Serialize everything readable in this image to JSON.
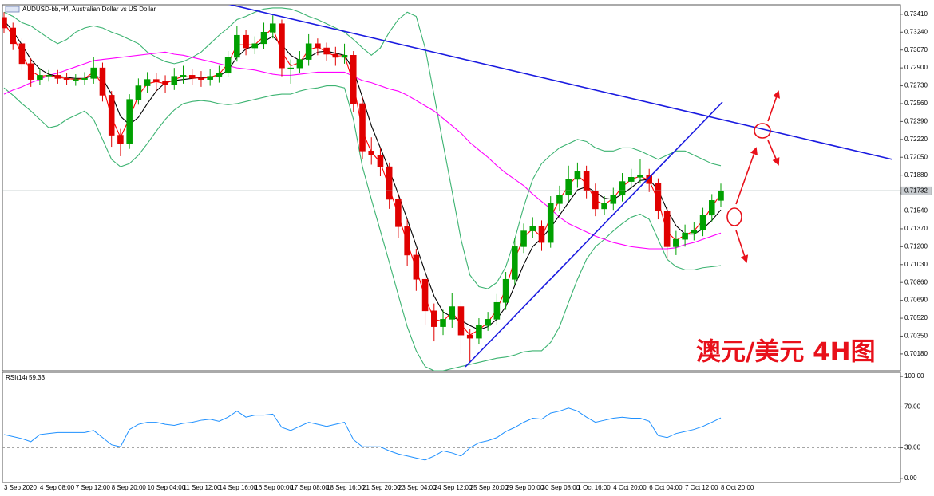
{
  "chart_data": [
    {
      "type": "candlestick",
      "title": "AUDUSD-bb,H4, Australian Dollar vs US Dollar",
      "annotation": "澳元/美元 4H图",
      "up_color": "#00a000",
      "down_color": "#e00000",
      "categories": [
        "3 Sep 2020",
        null,
        null,
        null,
        "4 Sep 08:00",
        null,
        null,
        null,
        "7 Sep 12:00",
        null,
        null,
        null,
        "8 Sep 20:00",
        null,
        null,
        null,
        "10 Sep 04:00",
        null,
        null,
        null,
        "11 Sep 12:00",
        null,
        null,
        null,
        "14 Sep 16:00",
        null,
        null,
        null,
        "16 Sep 00:00",
        null,
        null,
        null,
        "17 Sep 08:00",
        null,
        null,
        null,
        "18 Sep 16:00",
        null,
        null,
        null,
        "21 Sep 20:00",
        null,
        null,
        null,
        "23 Sep 04:00",
        null,
        null,
        null,
        "24 Sep 12:00",
        null,
        null,
        null,
        "25 Sep 20:00",
        null,
        null,
        null,
        "29 Sep 00:00",
        null,
        null,
        null,
        "30 Sep 08:00",
        null,
        null,
        null,
        "1 Oct 16:00",
        null,
        null,
        null,
        "4 Oct 20:00",
        null,
        null,
        null,
        "6 Oct 04:00",
        null,
        null,
        null,
        "7 Oct 12:00",
        null,
        null,
        null,
        "8 Oct 20:00"
      ],
      "open": [
        0.7338,
        0.7328,
        0.7313,
        0.7294,
        0.7279,
        0.7283,
        0.7283,
        0.728,
        0.7279,
        0.7279,
        0.728,
        0.729,
        0.7264,
        0.7226,
        0.7218,
        0.726,
        0.7273,
        0.7279,
        0.7277,
        0.7274,
        0.7282,
        0.7283,
        0.728,
        0.7279,
        0.7282,
        0.7285,
        0.73,
        0.7321,
        0.7309,
        0.7313,
        0.7324,
        0.7332,
        0.729,
        0.729,
        0.7298,
        0.7313,
        0.7309,
        0.7303,
        0.73,
        0.7302,
        0.7256,
        0.7211,
        0.7207,
        0.7196,
        0.7165,
        0.7139,
        0.7112,
        0.7089,
        0.7059,
        0.7044,
        0.7051,
        0.7063,
        0.7036,
        0.7033,
        0.7045,
        0.7051,
        0.7067,
        0.7089,
        0.712,
        0.7135,
        0.7139,
        0.7124,
        0.7161,
        0.7169,
        0.7184,
        0.7192,
        0.7173,
        0.7156,
        0.7161,
        0.7169,
        0.7182,
        0.7186,
        0.7188,
        0.718,
        0.7154,
        0.712,
        0.7127,
        0.7133,
        0.7136,
        0.715,
        0.7164
      ],
      "high": [
        0.7343,
        0.7333,
        0.7318,
        0.7299,
        0.729,
        0.7288,
        0.7288,
        0.7285,
        0.7284,
        0.7286,
        0.73,
        0.7295,
        0.7268,
        0.7232,
        0.7265,
        0.728,
        0.7286,
        0.7285,
        0.7283,
        0.729,
        0.7292,
        0.7289,
        0.7287,
        0.7289,
        0.7292,
        0.7306,
        0.733,
        0.7326,
        0.732,
        0.7333,
        0.734,
        0.7336,
        0.7298,
        0.7306,
        0.7322,
        0.7318,
        0.7314,
        0.731,
        0.7313,
        0.7306,
        0.7262,
        0.7224,
        0.7214,
        0.72,
        0.717,
        0.7146,
        0.7118,
        0.7094,
        0.7066,
        0.706,
        0.7076,
        0.7068,
        0.7042,
        0.7052,
        0.7058,
        0.7075,
        0.7096,
        0.7128,
        0.7142,
        0.7148,
        0.7145,
        0.7168,
        0.7178,
        0.7197,
        0.72,
        0.7197,
        0.718,
        0.7168,
        0.7176,
        0.719,
        0.7194,
        0.7203,
        0.7194,
        0.7185,
        0.7158,
        0.7135,
        0.7141,
        0.7143,
        0.7157,
        0.717,
        0.718
      ],
      "low": [
        0.7323,
        0.7307,
        0.7288,
        0.7272,
        0.7274,
        0.7277,
        0.7275,
        0.7274,
        0.7273,
        0.7274,
        0.7275,
        0.7258,
        0.7215,
        0.7206,
        0.7213,
        0.7255,
        0.7266,
        0.7268,
        0.7266,
        0.7269,
        0.7275,
        0.7274,
        0.7272,
        0.7273,
        0.7276,
        0.7281,
        0.7296,
        0.7302,
        0.7303,
        0.7308,
        0.7318,
        0.7282,
        0.7275,
        0.7285,
        0.7292,
        0.7302,
        0.7297,
        0.7292,
        0.7294,
        0.7248,
        0.7203,
        0.7198,
        0.7187,
        0.7156,
        0.7128,
        0.7102,
        0.7078,
        0.7046,
        0.703,
        0.7036,
        0.7043,
        0.7018,
        0.701,
        0.7027,
        0.704,
        0.7046,
        0.706,
        0.7084,
        0.7114,
        0.7128,
        0.7116,
        0.7119,
        0.7154,
        0.7163,
        0.7176,
        0.7166,
        0.7149,
        0.715,
        0.7155,
        0.7163,
        0.7176,
        0.718,
        0.7172,
        0.7146,
        0.7108,
        0.7112,
        0.712,
        0.7126,
        0.713,
        0.7144,
        0.7158
      ],
      "close": [
        0.7328,
        0.7313,
        0.7294,
        0.7279,
        0.7283,
        0.7283,
        0.728,
        0.7279,
        0.7279,
        0.728,
        0.729,
        0.7264,
        0.7226,
        0.7218,
        0.726,
        0.7273,
        0.7279,
        0.7277,
        0.7274,
        0.7282,
        0.7283,
        0.728,
        0.7279,
        0.7282,
        0.7285,
        0.73,
        0.7321,
        0.7309,
        0.7313,
        0.7324,
        0.7332,
        0.729,
        0.729,
        0.7298,
        0.7313,
        0.7309,
        0.7303,
        0.73,
        0.7302,
        0.7256,
        0.7211,
        0.7207,
        0.7196,
        0.7165,
        0.7139,
        0.7112,
        0.7089,
        0.7059,
        0.7044,
        0.7051,
        0.7063,
        0.7036,
        0.7033,
        0.7045,
        0.7051,
        0.7067,
        0.7089,
        0.712,
        0.7135,
        0.7139,
        0.7124,
        0.7161,
        0.7169,
        0.7184,
        0.7192,
        0.7173,
        0.7156,
        0.7161,
        0.7169,
        0.7182,
        0.7186,
        0.7188,
        0.718,
        0.7154,
        0.712,
        0.7127,
        0.7133,
        0.7136,
        0.715,
        0.7164,
        0.71732
      ],
      "series": [
        {
          "color": "#3cb371",
          "values": [
            0.7343,
            0.7339,
            0.7333,
            0.733,
            0.7324,
            0.7318,
            0.7313,
            0.7317,
            0.7324,
            0.7328,
            0.733,
            0.7328,
            0.7324,
            0.7321,
            0.7317,
            0.7313,
            0.7305,
            0.73,
            0.7296,
            0.7294,
            0.7296,
            0.73,
            0.7305,
            0.7313,
            0.7321,
            0.7328,
            0.7336,
            0.7339,
            0.7343,
            0.7346,
            0.7347,
            0.7347,
            0.7346,
            0.7343,
            0.7339,
            0.7336,
            0.7332,
            0.7328,
            0.7324,
            0.7317,
            0.7309,
            0.7302,
            0.7309,
            0.7324,
            0.7336,
            0.7343,
            0.7339,
            0.7309,
            0.7264,
            0.7218,
            0.7173,
            0.7127,
            0.7093,
            0.7082,
            0.708,
            0.7086,
            0.7101,
            0.7127,
            0.7158,
            0.7184,
            0.7199,
            0.7207,
            0.7214,
            0.7218,
            0.7222,
            0.722,
            0.7214,
            0.7211,
            0.7211,
            0.7214,
            0.7214,
            0.7211,
            0.7207,
            0.7203,
            0.7207,
            0.7211,
            0.7211,
            0.7207,
            0.7203,
            0.7199,
            0.7197
          ]
        },
        {
          "color": "#3cb371",
          "values": [
            0.7271,
            0.7264,
            0.7256,
            0.7249,
            0.7241,
            0.7233,
            0.7235,
            0.7241,
            0.7245,
            0.7249,
            0.7241,
            0.7222,
            0.7203,
            0.7196,
            0.7199,
            0.7207,
            0.7218,
            0.723,
            0.7241,
            0.725,
            0.7256,
            0.7258,
            0.7259,
            0.7258,
            0.7256,
            0.7255,
            0.7256,
            0.7258,
            0.726,
            0.7262,
            0.7264,
            0.7265,
            0.7265,
            0.7268,
            0.727,
            0.7271,
            0.7273,
            0.7273,
            0.7271,
            0.7241,
            0.7196,
            0.7165,
            0.7135,
            0.7105,
            0.7074,
            0.7044,
            0.7021,
            0.7006,
            0.7002,
            0.7002,
            0.7004,
            0.7006,
            0.7008,
            0.701,
            0.7012,
            0.7014,
            0.7015,
            0.7017,
            0.702,
            0.7021,
            0.7021,
            0.7029,
            0.7044,
            0.7067,
            0.7089,
            0.7108,
            0.712,
            0.7127,
            0.7135,
            0.7142,
            0.7148,
            0.7151,
            0.7146,
            0.7127,
            0.7108,
            0.7101,
            0.7098,
            0.7098,
            0.71,
            0.7101,
            0.7102
          ]
        },
        {
          "color": "#ff00ff",
          "values": [
            0.7265,
            0.7269,
            0.7272,
            0.7276,
            0.7279,
            0.7283,
            0.7285,
            0.7288,
            0.7291,
            0.7294,
            0.7297,
            0.7298,
            0.7299,
            0.73,
            0.7301,
            0.7302,
            0.7303,
            0.7304,
            0.7305,
            0.7303,
            0.7302,
            0.73,
            0.7298,
            0.7296,
            0.7294,
            0.7292,
            0.729,
            0.7289,
            0.7288,
            0.7286,
            0.7284,
            0.7283,
            0.7283,
            0.7284,
            0.7285,
            0.7286,
            0.7286,
            0.7286,
            0.7286,
            0.7282,
            0.7278,
            0.7276,
            0.7273,
            0.727,
            0.7268,
            0.7264,
            0.7259,
            0.7254,
            0.7249,
            0.7242,
            0.7235,
            0.7228,
            0.7219,
            0.7212,
            0.7205,
            0.7197,
            0.719,
            0.7184,
            0.7178,
            0.717,
            0.7163,
            0.7156,
            0.7148,
            0.7142,
            0.7138,
            0.7134,
            0.713,
            0.7127,
            0.7124,
            0.7122,
            0.712,
            0.7119,
            0.7118,
            0.7118,
            0.7118,
            0.7119,
            0.7122,
            0.7124,
            0.7127,
            0.713,
            0.7133
          ]
        },
        {
          "color": "#000000",
          "values": [
            0.7335,
            0.7325,
            0.7312,
            0.7298,
            0.7289,
            0.7284,
            0.7282,
            0.7281,
            0.728,
            0.728,
            0.7283,
            0.728,
            0.7265,
            0.7244,
            0.7236,
            0.7243,
            0.7256,
            0.7268,
            0.7276,
            0.7278,
            0.7279,
            0.728,
            0.7281,
            0.7281,
            0.7282,
            0.7288,
            0.73,
            0.7308,
            0.7311,
            0.7315,
            0.732,
            0.7312,
            0.7302,
            0.7297,
            0.73,
            0.7305,
            0.7306,
            0.7304,
            0.7302,
            0.7288,
            0.7262,
            0.7235,
            0.7214,
            0.7193,
            0.717,
            0.7146,
            0.7121,
            0.7096,
            0.7073,
            0.7058,
            0.7053,
            0.705,
            0.7045,
            0.7041,
            0.7044,
            0.7051,
            0.7063,
            0.7083,
            0.7103,
            0.712,
            0.7128,
            0.7138,
            0.715,
            0.7162,
            0.7174,
            0.7177,
            0.7172,
            0.7166,
            0.7165,
            0.717,
            0.7176,
            0.7183,
            0.7184,
            0.7174,
            0.7155,
            0.714,
            0.7132,
            0.7132,
            0.7137,
            0.7145,
            0.7155
          ]
        },
        {
          "color": "#ff0000",
          "values": [
            0.7333,
            0.732,
            0.7303,
            0.7287,
            0.7282,
            0.7283,
            0.7281,
            0.728,
            0.7279,
            0.728,
            0.7286,
            0.7274,
            0.7243,
            0.7224,
            0.7242,
            0.7264,
            0.7275,
            0.7277,
            0.7275,
            0.7279,
            0.7282,
            0.7281,
            0.728,
            0.7281,
            0.7284,
            0.7294,
            0.7312,
            0.7312,
            0.7312,
            0.732,
            0.7328,
            0.7305,
            0.7292,
            0.7295,
            0.7307,
            0.731,
            0.7305,
            0.7301,
            0.7302,
            0.7275,
            0.723,
            0.721,
            0.72,
            0.7176,
            0.715,
            0.7124,
            0.7099,
            0.7072,
            0.7051,
            0.7049,
            0.7058,
            0.7046,
            0.7036,
            0.7041,
            0.7048,
            0.706,
            0.708,
            0.7108,
            0.7129,
            0.7137,
            0.7129,
            0.7148,
            0.7165,
            0.7178,
            0.7188,
            0.718,
            0.7164,
            0.716,
            0.7166,
            0.7177,
            0.7184,
            0.7187,
            0.7183,
            0.7164,
            0.7134,
            0.7126,
            0.7131,
            0.7135,
            0.7145,
            0.7158,
            0.717
          ]
        }
      ],
      "ylim": [
        0.7002,
        0.735
      ],
      "yticks": [
        {
          "value": 0.7341,
          "label": "0.73410"
        },
        {
          "value": 0.7324,
          "label": "0.73240"
        },
        {
          "value": 0.7307,
          "label": "0.73070"
        },
        {
          "value": 0.729,
          "label": "0.72900"
        },
        {
          "value": 0.7273,
          "label": "0.72730"
        },
        {
          "value": 0.7256,
          "label": "0.72560"
        },
        {
          "value": 0.7239,
          "label": "0.72390"
        },
        {
          "value": 0.7222,
          "label": "0.72220"
        },
        {
          "value": 0.7205,
          "label": "0.72050"
        },
        {
          "value": 0.7188,
          "label": "0.71880"
        },
        {
          "value": 0.7171,
          "label": "0.71710"
        },
        {
          "value": 0.7154,
          "label": "0.71540"
        },
        {
          "value": 0.7137,
          "label": "0.71370"
        },
        {
          "value": 0.712,
          "label": "0.71200"
        },
        {
          "value": 0.7103,
          "label": "0.71030"
        },
        {
          "value": 0.7086,
          "label": "0.70860"
        },
        {
          "value": 0.7069,
          "label": "0.70690"
        },
        {
          "value": 0.7052,
          "label": "0.70520"
        },
        {
          "value": 0.7035,
          "label": "0.70350"
        },
        {
          "value": 0.7018,
          "label": "0.70180"
        }
      ],
      "last_price_line": true
    },
    {
      "type": "line",
      "title": "RSI(14)",
      "series": [
        {
          "color": "#1e90ff",
          "values": [
            43,
            41,
            39,
            36,
            43,
            44,
            45,
            45,
            45,
            45,
            47,
            40,
            33,
            31,
            48,
            53,
            55,
            55,
            53,
            52,
            54,
            55,
            57,
            58,
            56,
            60,
            66,
            60,
            62,
            62,
            63,
            50,
            47,
            51,
            55,
            53,
            51,
            53,
            55,
            38,
            31,
            31,
            31,
            27,
            24,
            22,
            20,
            18,
            22,
            27,
            25,
            22,
            30,
            35,
            37,
            40,
            46,
            50,
            55,
            59,
            58,
            64,
            66,
            69,
            66,
            60,
            55,
            57,
            59,
            60,
            59,
            59,
            56,
            42,
            40,
            44,
            46,
            48,
            51,
            55,
            59.33
          ]
        }
      ],
      "ylim": [
        -4,
        104
      ],
      "yticks": [
        {
          "value": 100,
          "label": "100.00"
        },
        {
          "value": 70,
          "label": "70.00"
        },
        {
          "value": 30,
          "label": "30.00"
        },
        {
          "value": 0,
          "label": "0.00"
        }
      ],
      "levels": [
        70,
        30
      ]
    }
  ]
}
